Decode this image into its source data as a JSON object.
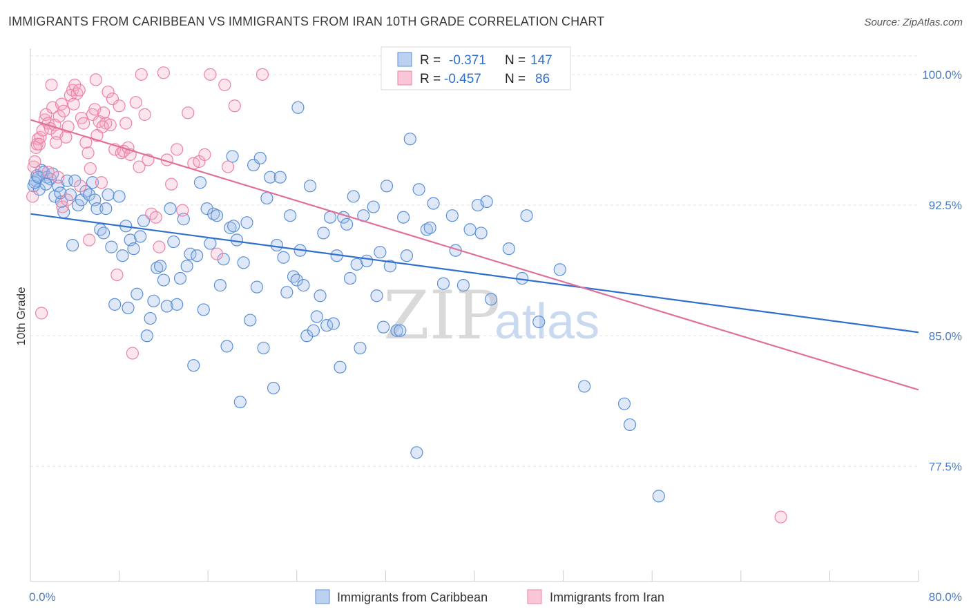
{
  "title": "IMMIGRANTS FROM CARIBBEAN VS IMMIGRANTS FROM IRAN 10TH GRADE CORRELATION CHART",
  "source": "Source: ZipAtlas.com",
  "watermark": {
    "zip": "ZIP",
    "atlas": "atlas"
  },
  "colors": {
    "blue": "#5b8fd6",
    "blue_fill": "rgba(160,190,235,0.35)",
    "blue_line": "#2f6fce",
    "pink": "#ee82a6",
    "pink_fill": "rgba(245,170,195,0.30)",
    "pink_line": "#e0709a"
  },
  "legend": {
    "r_label": "R =",
    "n_label": "N =",
    "rows": [
      {
        "r": "-0.371",
        "n": "147"
      },
      {
        "r": "-0.457",
        "n": "86"
      }
    ]
  },
  "chart_data": {
    "type": "scatter",
    "title": "IMMIGRANTS FROM CARIBBEAN VS IMMIGRANTS FROM IRAN 10TH GRADE CORRELATION CHART",
    "xlabel": "",
    "ylabel": "10th Grade",
    "xlim": [
      0,
      80
    ],
    "ylim": [
      70.9,
      101.5
    ],
    "x_tick_labels": [
      "0.0%",
      "80.0%"
    ],
    "y_ticks": [
      77.5,
      85.0,
      92.5,
      100.0
    ],
    "y_tick_labels": [
      "77.5%",
      "85.0%",
      "92.5%",
      "100.0%"
    ],
    "grid": true,
    "legend_position": "top-center",
    "series": [
      {
        "name": "Immigrants from Caribbean",
        "color": "#5b8fd6",
        "trend": {
          "x": [
            0,
            80
          ],
          "y": [
            92.0,
            85.2
          ]
        },
        "points": [
          [
            0.3,
            93.6
          ],
          [
            0.5,
            93.9
          ],
          [
            0.6,
            94.2
          ],
          [
            0.8,
            93.4
          ],
          [
            1.0,
            94.5
          ],
          [
            1.2,
            94.4
          ],
          [
            1.5,
            94.1
          ],
          [
            1.8,
            94.0
          ],
          [
            2.0,
            94.3
          ],
          [
            2.2,
            93.0
          ],
          [
            2.5,
            93.6
          ],
          [
            2.8,
            92.7
          ],
          [
            3.0,
            92.1
          ],
          [
            3.3,
            93.9
          ],
          [
            3.6,
            93.1
          ],
          [
            3.8,
            90.2
          ],
          [
            4.0,
            93.9
          ],
          [
            4.3,
            92.5
          ],
          [
            4.6,
            92.8
          ],
          [
            5.0,
            93.3
          ],
          [
            5.3,
            93.1
          ],
          [
            5.6,
            93.8
          ],
          [
            5.8,
            92.8
          ],
          [
            6.0,
            92.3
          ],
          [
            6.3,
            91.1
          ],
          [
            6.6,
            90.9
          ],
          [
            6.8,
            92.3
          ],
          [
            7.0,
            93.1
          ],
          [
            7.3,
            90.1
          ],
          [
            7.6,
            86.8
          ],
          [
            8.0,
            93.0
          ],
          [
            8.3,
            89.6
          ],
          [
            8.6,
            91.3
          ],
          [
            8.8,
            86.6
          ],
          [
            9.0,
            90.5
          ],
          [
            9.3,
            90.0
          ],
          [
            9.6,
            87.4
          ],
          [
            9.9,
            90.7
          ],
          [
            10.2,
            91.6
          ],
          [
            10.5,
            85.0
          ],
          [
            10.8,
            86.0
          ],
          [
            11.1,
            87.0
          ],
          [
            11.4,
            88.9
          ],
          [
            11.7,
            89.0
          ],
          [
            12.0,
            88.2
          ],
          [
            12.3,
            86.7
          ],
          [
            12.6,
            92.3
          ],
          [
            12.9,
            90.4
          ],
          [
            13.2,
            86.8
          ],
          [
            13.5,
            88.3
          ],
          [
            13.8,
            91.7
          ],
          [
            14.1,
            89.0
          ],
          [
            14.4,
            89.7
          ],
          [
            14.7,
            83.3
          ],
          [
            15.0,
            89.6
          ],
          [
            15.3,
            93.8
          ],
          [
            15.6,
            86.5
          ],
          [
            15.9,
            92.3
          ],
          [
            16.2,
            90.3
          ],
          [
            16.5,
            92.0
          ],
          [
            16.8,
            91.9
          ],
          [
            17.1,
            87.9
          ],
          [
            17.4,
            89.4
          ],
          [
            17.7,
            84.4
          ],
          [
            18.0,
            91.2
          ],
          [
            18.3,
            91.3
          ],
          [
            18.6,
            90.5
          ],
          [
            18.9,
            81.2
          ],
          [
            19.2,
            89.2
          ],
          [
            19.5,
            91.5
          ],
          [
            19.8,
            85.9
          ],
          [
            20.1,
            94.8
          ],
          [
            20.4,
            87.8
          ],
          [
            20.7,
            95.2
          ],
          [
            21.0,
            84.3
          ],
          [
            21.3,
            92.9
          ],
          [
            21.6,
            94.1
          ],
          [
            21.9,
            82.0
          ],
          [
            22.2,
            90.2
          ],
          [
            22.5,
            94.1
          ],
          [
            22.8,
            89.5
          ],
          [
            23.1,
            87.5
          ],
          [
            23.4,
            91.9
          ],
          [
            23.7,
            88.4
          ],
          [
            24.0,
            88.2
          ],
          [
            24.3,
            89.9
          ],
          [
            24.6,
            87.9
          ],
          [
            24.9,
            85.0
          ],
          [
            25.2,
            93.6
          ],
          [
            25.5,
            85.3
          ],
          [
            25.8,
            86.1
          ],
          [
            26.1,
            87.3
          ],
          [
            26.4,
            90.9
          ],
          [
            26.7,
            85.6
          ],
          [
            27.0,
            91.8
          ],
          [
            27.3,
            85.7
          ],
          [
            27.6,
            89.6
          ],
          [
            27.9,
            83.2
          ],
          [
            28.2,
            91.8
          ],
          [
            28.5,
            91.4
          ],
          [
            28.8,
            88.3
          ],
          [
            29.1,
            93.0
          ],
          [
            29.4,
            89.1
          ],
          [
            29.7,
            84.3
          ],
          [
            30.0,
            91.9
          ],
          [
            30.3,
            89.3
          ],
          [
            30.9,
            92.4
          ],
          [
            31.2,
            87.3
          ],
          [
            31.5,
            89.8
          ],
          [
            31.8,
            85.5
          ],
          [
            32.1,
            93.6
          ],
          [
            32.4,
            89.0
          ],
          [
            33.0,
            85.3
          ],
          [
            33.3,
            85.3
          ],
          [
            33.6,
            91.8
          ],
          [
            33.9,
            89.6
          ],
          [
            34.2,
            96.3
          ],
          [
            34.8,
            78.3
          ],
          [
            35.0,
            93.4
          ],
          [
            35.7,
            91.1
          ],
          [
            36.0,
            91.2
          ],
          [
            36.3,
            92.6
          ],
          [
            37.2,
            88.0
          ],
          [
            38.0,
            91.9
          ],
          [
            38.3,
            89.9
          ],
          [
            39.0,
            87.9
          ],
          [
            39.6,
            91.1
          ],
          [
            40.3,
            92.5
          ],
          [
            40.6,
            90.9
          ],
          [
            41.1,
            92.7
          ],
          [
            41.5,
            87.1
          ],
          [
            41.9,
            100.1
          ],
          [
            43.1,
            90.0
          ],
          [
            44.3,
            88.3
          ],
          [
            44.7,
            91.9
          ],
          [
            45.8,
            85.8
          ],
          [
            47.7,
            88.8
          ],
          [
            49.9,
            82.1
          ],
          [
            53.5,
            81.1
          ],
          [
            54.0,
            79.9
          ],
          [
            56.6,
            75.8
          ],
          [
            24.1,
            98.1
          ],
          [
            18.2,
            95.3
          ],
          [
            0.4,
            93.8
          ],
          [
            0.7,
            94.1
          ],
          [
            1.4,
            93.7
          ],
          [
            2.7,
            93.2
          ]
        ]
      },
      {
        "name": "Immigrants from Iran",
        "color": "#ee82a6",
        "trend": {
          "x": [
            0,
            80
          ],
          "y": [
            97.4,
            81.9
          ]
        },
        "points": [
          [
            0.2,
            93.0
          ],
          [
            0.3,
            94.7
          ],
          [
            0.4,
            95.0
          ],
          [
            0.6,
            96.0
          ],
          [
            0.7,
            96.3
          ],
          [
            0.9,
            96.4
          ],
          [
            1.1,
            96.8
          ],
          [
            1.3,
            97.4
          ],
          [
            1.4,
            97.7
          ],
          [
            1.6,
            97.2
          ],
          [
            1.8,
            96.9
          ],
          [
            2.0,
            98.1
          ],
          [
            2.2,
            97.1
          ],
          [
            2.4,
            96.6
          ],
          [
            2.6,
            97.6
          ],
          [
            2.8,
            98.3
          ],
          [
            3.0,
            97.9
          ],
          [
            3.2,
            96.4
          ],
          [
            3.4,
            97.0
          ],
          [
            3.6,
            98.8
          ],
          [
            3.8,
            99.1
          ],
          [
            4.0,
            99.4
          ],
          [
            4.2,
            98.9
          ],
          [
            4.4,
            99.1
          ],
          [
            4.6,
            97.5
          ],
          [
            4.8,
            97.2
          ],
          [
            5.0,
            96.1
          ],
          [
            5.2,
            95.5
          ],
          [
            5.4,
            94.6
          ],
          [
            5.6,
            97.7
          ],
          [
            5.8,
            98.0
          ],
          [
            6.0,
            96.5
          ],
          [
            6.2,
            97.3
          ],
          [
            6.4,
            93.8
          ],
          [
            6.6,
            97.8
          ],
          [
            6.8,
            97.2
          ],
          [
            7.0,
            99.0
          ],
          [
            7.2,
            97.1
          ],
          [
            7.4,
            98.6
          ],
          [
            7.6,
            95.7
          ],
          [
            7.8,
            88.5
          ],
          [
            8.0,
            98.2
          ],
          [
            8.2,
            95.5
          ],
          [
            8.4,
            95.6
          ],
          [
            8.6,
            97.2
          ],
          [
            8.8,
            95.8
          ],
          [
            9.0,
            95.4
          ],
          [
            9.2,
            84.0
          ],
          [
            9.5,
            98.4
          ],
          [
            9.8,
            94.7
          ],
          [
            10.0,
            100.0
          ],
          [
            10.3,
            97.7
          ],
          [
            10.6,
            95.1
          ],
          [
            10.9,
            92.0
          ],
          [
            11.3,
            91.8
          ],
          [
            11.6,
            90.1
          ],
          [
            12.0,
            100.1
          ],
          [
            12.3,
            95.1
          ],
          [
            12.7,
            93.7
          ],
          [
            13.2,
            95.7
          ],
          [
            13.7,
            92.2
          ],
          [
            14.2,
            97.8
          ],
          [
            14.7,
            94.9
          ],
          [
            15.2,
            95.0
          ],
          [
            15.7,
            95.4
          ],
          [
            16.2,
            100.0
          ],
          [
            16.8,
            89.7
          ],
          [
            17.5,
            99.4
          ],
          [
            17.8,
            94.7
          ],
          [
            18.4,
            98.2
          ],
          [
            20.9,
            100.0
          ],
          [
            1.0,
            86.3
          ],
          [
            1.6,
            94.4
          ],
          [
            2.3,
            96.1
          ],
          [
            2.9,
            92.4
          ],
          [
            3.3,
            92.8
          ],
          [
            3.9,
            98.3
          ],
          [
            4.5,
            93.6
          ],
          [
            5.3,
            90.5
          ],
          [
            5.9,
            99.7
          ],
          [
            6.5,
            97.0
          ],
          [
            0.8,
            96.0
          ],
          [
            1.9,
            99.4
          ],
          [
            2.5,
            94.1
          ],
          [
            67.6,
            74.6
          ],
          [
            0.5,
            95.8
          ]
        ]
      }
    ]
  }
}
